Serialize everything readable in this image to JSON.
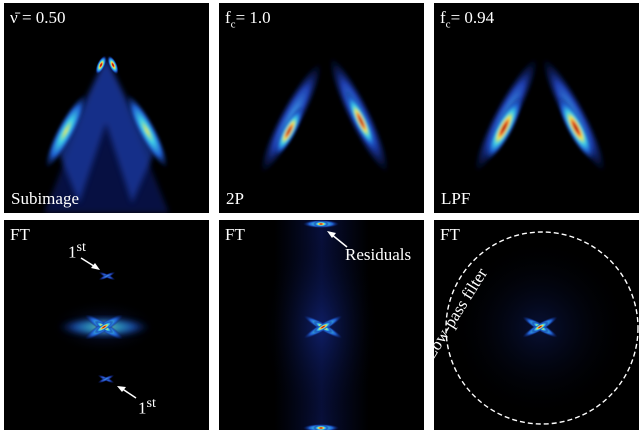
{
  "top_row": [
    {
      "symbol": "ν̄",
      "value": "0.50",
      "caption": "Subimage"
    },
    {
      "symbol": "f",
      "subscript": "c",
      "value": "1.0",
      "caption": "2P"
    },
    {
      "symbol": "f",
      "subscript": "c",
      "value": "0.94",
      "caption": "LPF"
    }
  ],
  "bottom_row": [
    {
      "label": "FT",
      "annotations": [
        {
          "base": "1",
          "sup": "st"
        },
        {
          "base": "1",
          "sup": "st"
        }
      ]
    },
    {
      "label": "FT",
      "annotation": "Residuals"
    },
    {
      "label": "FT",
      "annotation": "Low-pass filter"
    }
  ],
  "equals": "=",
  "colors": {
    "background": "#000000",
    "text": "#ffffff",
    "colormap": [
      "#000000",
      "#0a1a6a",
      "#1f5fd0",
      "#3fd0e8",
      "#f2e94e",
      "#e63b1e",
      "#8b0000"
    ]
  }
}
